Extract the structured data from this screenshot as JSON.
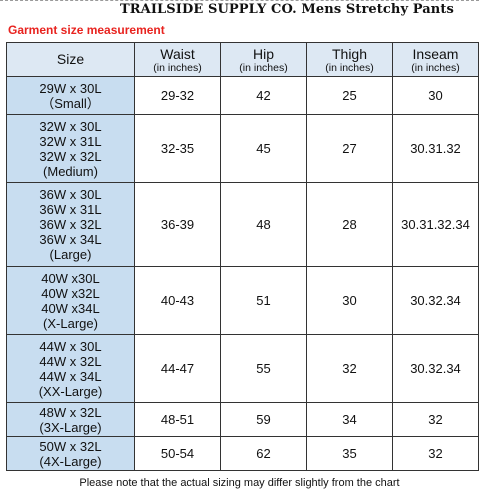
{
  "header": {
    "title": "TRAILSIDE SUPPLY CO. Mens Stretchy Pants",
    "subtitle": "Garment size measurement"
  },
  "table": {
    "columns": [
      {
        "label": "Size",
        "sub": ""
      },
      {
        "label": "Waist",
        "sub": "(in inches)"
      },
      {
        "label": "Hip",
        "sub": "(in inches)"
      },
      {
        "label": "Thigh",
        "sub": "(in inches)"
      },
      {
        "label": "Inseam",
        "sub": "(in inches)"
      }
    ],
    "rows": [
      {
        "size": [
          "29W x 30L",
          "（Small）"
        ],
        "waist": "29-32",
        "hip": "42",
        "thigh": "25",
        "inseam": "30"
      },
      {
        "size": [
          "32W x 30L",
          "32W x 31L",
          "32W x 32L",
          "(Medium)"
        ],
        "waist": "32-35",
        "hip": "45",
        "thigh": "27",
        "inseam": "30.31.32"
      },
      {
        "size": [
          "36W x 30L",
          "36W x 31L",
          "36W x 32L",
          "36W x 34L",
          "(Large)"
        ],
        "waist": "36-39",
        "hip": "48",
        "thigh": "28",
        "inseam": "30.31.32.34"
      },
      {
        "size": [
          "40W x30L",
          "40W x32L",
          "40W x34L",
          "(X-Large)"
        ],
        "waist": "40-43",
        "hip": "51",
        "thigh": "30",
        "inseam": "30.32.34"
      },
      {
        "size": [
          "44W x 30L",
          "44W x 32L",
          "44W x 34L",
          "(XX-Large)"
        ],
        "waist": "44-47",
        "hip": "55",
        "thigh": "32",
        "inseam": "30.32.34"
      },
      {
        "size": [
          "48W x 32L",
          "(3X-Large)"
        ],
        "waist": "48-51",
        "hip": "59",
        "thigh": "34",
        "inseam": "32"
      },
      {
        "size": [
          "50W x 32L",
          "(4X-Large)"
        ],
        "waist": "50-54",
        "hip": "62",
        "thigh": "35",
        "inseam": "32"
      }
    ]
  },
  "footnote": "Please note that the actual sizing may differ slightly from the chart"
}
